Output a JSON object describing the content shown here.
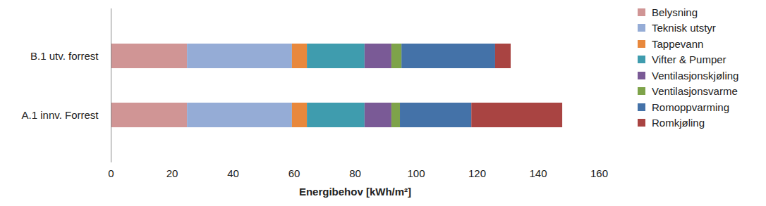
{
  "chart_data": {
    "type": "bar",
    "orientation": "horizontal",
    "stacked": true,
    "legend": "right",
    "grid": false,
    "xlabel": "Energibehov [kWh/m²]",
    "xlim": [
      0,
      160
    ],
    "xticks": [
      0,
      20,
      40,
      60,
      80,
      100,
      120,
      140,
      160
    ],
    "categories": [
      "B.1 utv. forrest",
      "A.1 innv. Forrest"
    ],
    "series": [
      {
        "name": "Belysning",
        "color": "#d09595",
        "values": [
          25,
          25
        ]
      },
      {
        "name": "Teknisk utstyr",
        "color": "#95acd6",
        "values": [
          34.4,
          34.4
        ]
      },
      {
        "name": "Tappevann",
        "color": "#e8883c",
        "values": [
          4.9,
          4.9
        ]
      },
      {
        "name": "Vifter & Pumper",
        "color": "#3f9cae",
        "values": [
          18.9,
          18.9
        ]
      },
      {
        "name": "Ventilasjonskjøling",
        "color": "#7a5a96",
        "values": [
          8.8,
          8.8
        ]
      },
      {
        "name": "Ventilasjonsvarme",
        "color": "#7ea34a",
        "values": [
          3.3,
          2.8
        ]
      },
      {
        "name": "Romoppvarming",
        "color": "#4472a8",
        "values": [
          30.7,
          23.4
        ]
      },
      {
        "name": "Romkjøling",
        "color": "#a94442",
        "values": [
          5.1,
          29.8
        ]
      }
    ]
  }
}
